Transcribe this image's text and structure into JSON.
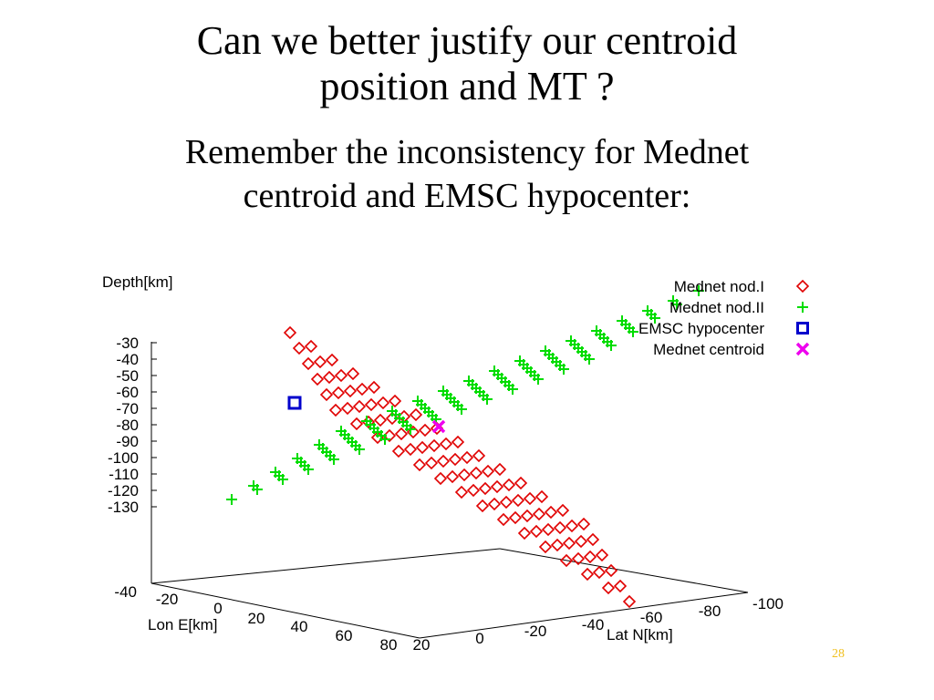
{
  "slide": {
    "title_line1": "Can we better justify our centroid",
    "title_line2": "position and MT ?",
    "subtitle_line1": "Remember the inconsistency  for Mednet",
    "subtitle_line2": "centroid and EMSC hypocenter:",
    "page_number": "28"
  },
  "chart_data": {
    "type": "scatter",
    "projection": "3d",
    "zlabel": "Depth[km]",
    "xlabel": "Lon E[km]",
    "ylabel": "Lat N[km]",
    "z_ticks": [
      "-30",
      "-40",
      "-50",
      "-60",
      "-70",
      "-80",
      "-90",
      "-100",
      "-110",
      "-120",
      "-130"
    ],
    "z_axis_bottom_label": "-40",
    "x_ticks": [
      "-20",
      "0",
      "20",
      "40",
      "60",
      "80"
    ],
    "y_ticks": [
      "20",
      "0",
      "-20",
      "-40",
      "-60",
      "-80",
      "-100"
    ],
    "legend_position": "top-right",
    "colors": {
      "nodal1": "#e00000",
      "nodal2": "#00dd00",
      "hypocenter": "#0000cc",
      "centroid": "#ee00ee"
    },
    "series": [
      {
        "name": "Mednet nod.I",
        "marker": "diamond",
        "color": "#e00000",
        "grid": [
          15,
          6
        ]
      },
      {
        "name": "Mednet nod.II",
        "marker": "plus",
        "color": "#00dd00",
        "grid": [
          15,
          6
        ]
      },
      {
        "name": "EMSC hypocenter",
        "marker": "square",
        "color": "#0000cc"
      },
      {
        "name": "Mednet centroid",
        "marker": "cross",
        "color": "#ee00ee"
      }
    ]
  }
}
